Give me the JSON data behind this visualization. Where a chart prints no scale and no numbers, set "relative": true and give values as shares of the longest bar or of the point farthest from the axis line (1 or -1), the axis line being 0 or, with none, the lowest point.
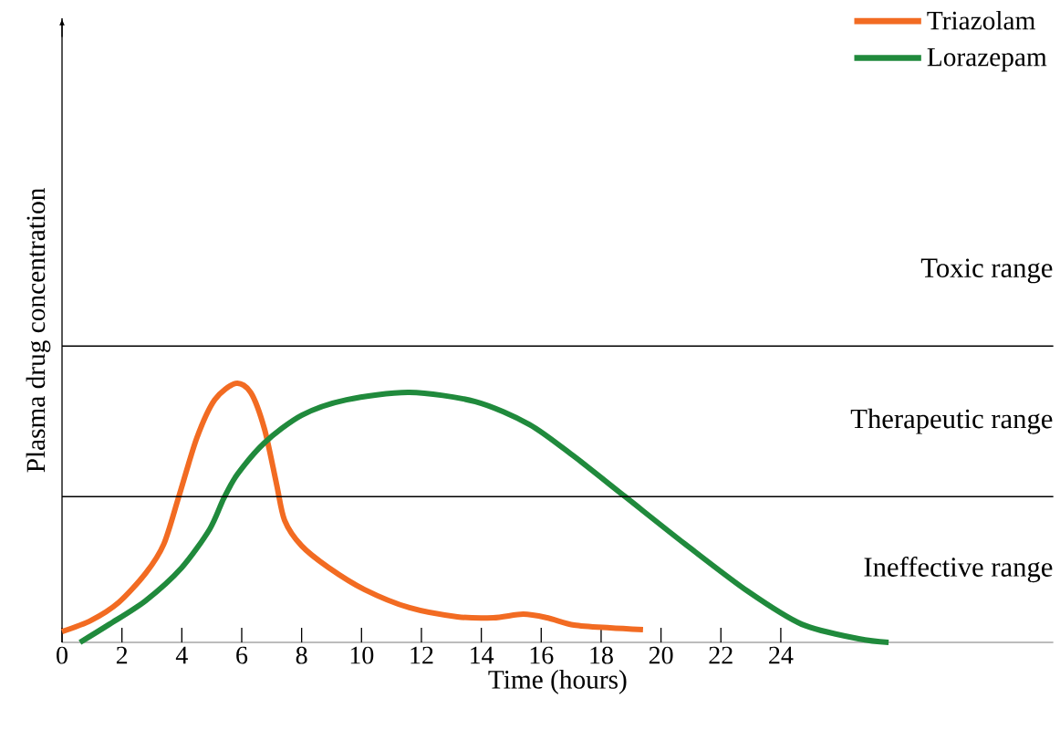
{
  "chart_data": {
    "type": "line",
    "relative": true,
    "xlabel": "Time (hours)",
    "ylabel": "Plasma drug concentration",
    "x": [
      0,
      0.97,
      1.9,
      2.8,
      3.4,
      3.9,
      4.5,
      5.1,
      5.8,
      6.3,
      6.76,
      7.16,
      7.43,
      8.0,
      8.9,
      10.1,
      11.6,
      13.2,
      14.4,
      15.4,
      16.2,
      17.1,
      18.3,
      19.4
    ],
    "xlim": [
      0,
      33.1
    ],
    "xticks": [
      0,
      2,
      4,
      6,
      8,
      10,
      12,
      14,
      16,
      18,
      20,
      22,
      24
    ],
    "series": [
      {
        "name": "Triazolam",
        "color": "#f26b22",
        "values": [
          0.042,
          0.085,
          0.155,
          0.268,
          0.38,
          0.563,
          0.789,
          0.937,
          1.0,
          0.965,
          0.824,
          0.613,
          0.472,
          0.373,
          0.289,
          0.204,
          0.134,
          0.099,
          0.095,
          0.109,
          0.095,
          0.067,
          0.056,
          0.049
        ]
      },
      {
        "name": "Lorazepam",
        "color": "#208a3c",
        "x": [
          0.6,
          1.58,
          2.8,
          4.0,
          4.93,
          5.4,
          5.85,
          6.76,
          8.0,
          9.5,
          11.6,
          13.8,
          15.6,
          17.1,
          18.8,
          20.8,
          22.9,
          24.7,
          26.6,
          27.6
        ],
        "values": [
          0,
          0.07,
          0.162,
          0.289,
          0.437,
          0.556,
          0.648,
          0.771,
          0.877,
          0.937,
          0.965,
          0.93,
          0.842,
          0.718,
          0.563,
          0.38,
          0.197,
          0.07,
          0.014,
          0
        ]
      }
    ],
    "ref_lines": [
      {
        "axis": "y",
        "value": 0.563,
        "color": "#000000"
      },
      {
        "axis": "y",
        "value": 1.144,
        "color": "#000000"
      }
    ],
    "annotations": [
      "Toxic range",
      "Therapeutic range",
      "Ineffective range"
    ],
    "legend": "top right",
    "grid": false,
    "marker": "none",
    "line_style": "solid"
  }
}
